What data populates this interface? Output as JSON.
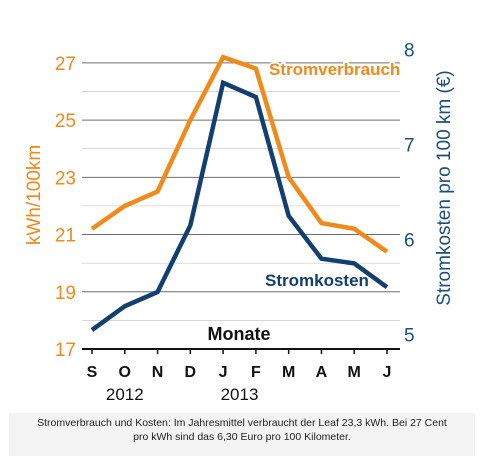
{
  "chart_data": {
    "type": "line",
    "categories": [
      "S",
      "O",
      "N",
      "D",
      "J",
      "F",
      "M",
      "A",
      "M",
      "J"
    ],
    "year_labels": [
      {
        "text": "2012",
        "index": 1
      },
      {
        "text": "2013",
        "index": 4.5
      }
    ],
    "xlabel": "Monate",
    "y_left": {
      "label": "kWh/100km",
      "ticks": [
        17,
        19,
        21,
        23,
        25,
        27
      ],
      "range": [
        17,
        27.8
      ],
      "color": "#f08a1c"
    },
    "y_right": {
      "label": "Stromkosten pro 100 km (€)",
      "ticks": [
        5,
        6,
        7,
        8
      ],
      "range": [
        4.85,
        8.1
      ],
      "color": "#1f4f7a"
    },
    "series": [
      {
        "name": "Stromverbrauch",
        "axis": "left",
        "color": "#f08a1c",
        "values": [
          21.2,
          22.0,
          22.5,
          25.0,
          27.2,
          26.8,
          23.0,
          21.4,
          21.2,
          20.4
        ]
      },
      {
        "name": "Stromkosten",
        "axis": "right",
        "color": "#123f6e",
        "values": [
          5.05,
          5.3,
          5.45,
          6.15,
          7.65,
          7.5,
          6.25,
          5.8,
          5.75,
          5.5
        ]
      }
    ],
    "grid": true
  },
  "caption": {
    "line1": "Stromverbrauch und Kosten: Im Jahresmittel verbraucht der Leaf 23,3 kWh. Bei 27 Cent",
    "line2": "pro kWh sind das 6,30 Euro pro 100 Kilometer."
  }
}
